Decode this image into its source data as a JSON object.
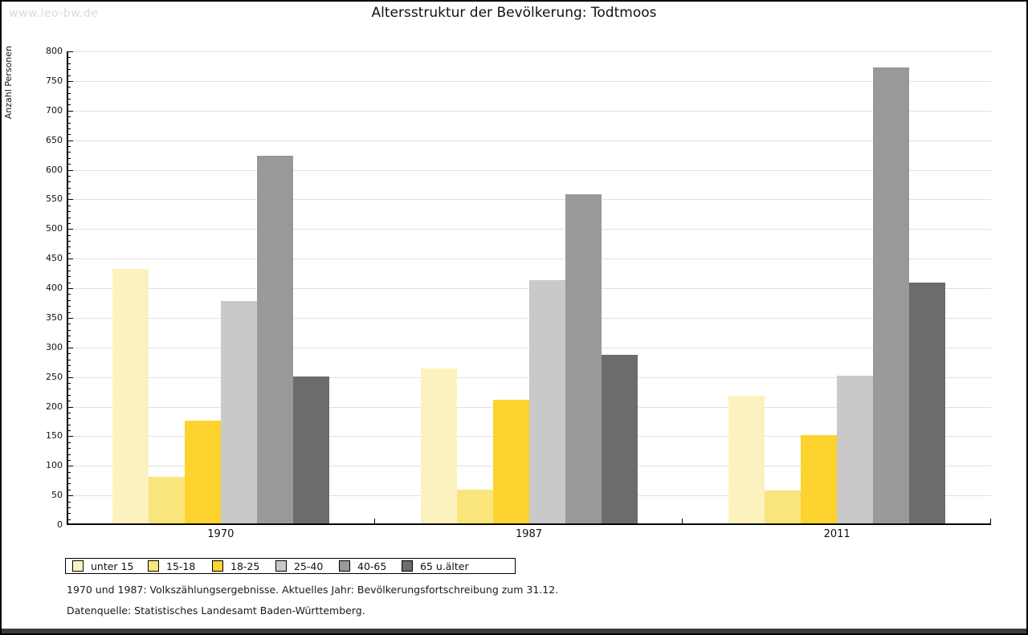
{
  "watermark": "www.leo-bw.de",
  "header": {
    "title": "Altersstruktur der Bevölkerung: Todtmoos"
  },
  "chart_data": {
    "type": "bar",
    "title": "Altersstruktur der Bevölkerung: Todtmoos",
    "xlabel": "",
    "ylabel": "Anzahl Personen",
    "ylim": [
      0,
      800
    ],
    "y_major_step": 50,
    "y_minor_step": 10,
    "grid": true,
    "legend_position": "bottom",
    "categories": [
      "1970",
      "1987",
      "2011"
    ],
    "series": [
      {
        "name": "unter 15",
        "color": "#FBF2C0",
        "values": [
          433,
          264,
          219
        ]
      },
      {
        "name": "15-18",
        "color": "#FAE57D",
        "values": [
          81,
          60,
          59
        ]
      },
      {
        "name": "18-25",
        "color": "#FCD32F",
        "values": [
          176,
          212,
          152
        ]
      },
      {
        "name": "25-40",
        "color": "#C9C9C9",
        "values": [
          378,
          414,
          252
        ]
      },
      {
        "name": "40-65",
        "color": "#999999",
        "values": [
          624,
          558,
          773
        ]
      },
      {
        "name": "65 u.älter",
        "color": "#6C6C6C",
        "values": [
          251,
          288,
          410
        ]
      }
    ]
  },
  "footnotes": {
    "line1": "1970 und 1987: Volkszählungsergebnisse. Aktuelles Jahr: Bevölkerungsfortschreibung zum 31.12.",
    "line2": "Datenquelle: Statistisches Landesamt Baden-Württemberg."
  },
  "style_colors": {
    "gridline": "#E1E1E1",
    "axis": "#000000",
    "watermark": "#DBDBDB",
    "bottom_bar": "#3B3B3B"
  }
}
